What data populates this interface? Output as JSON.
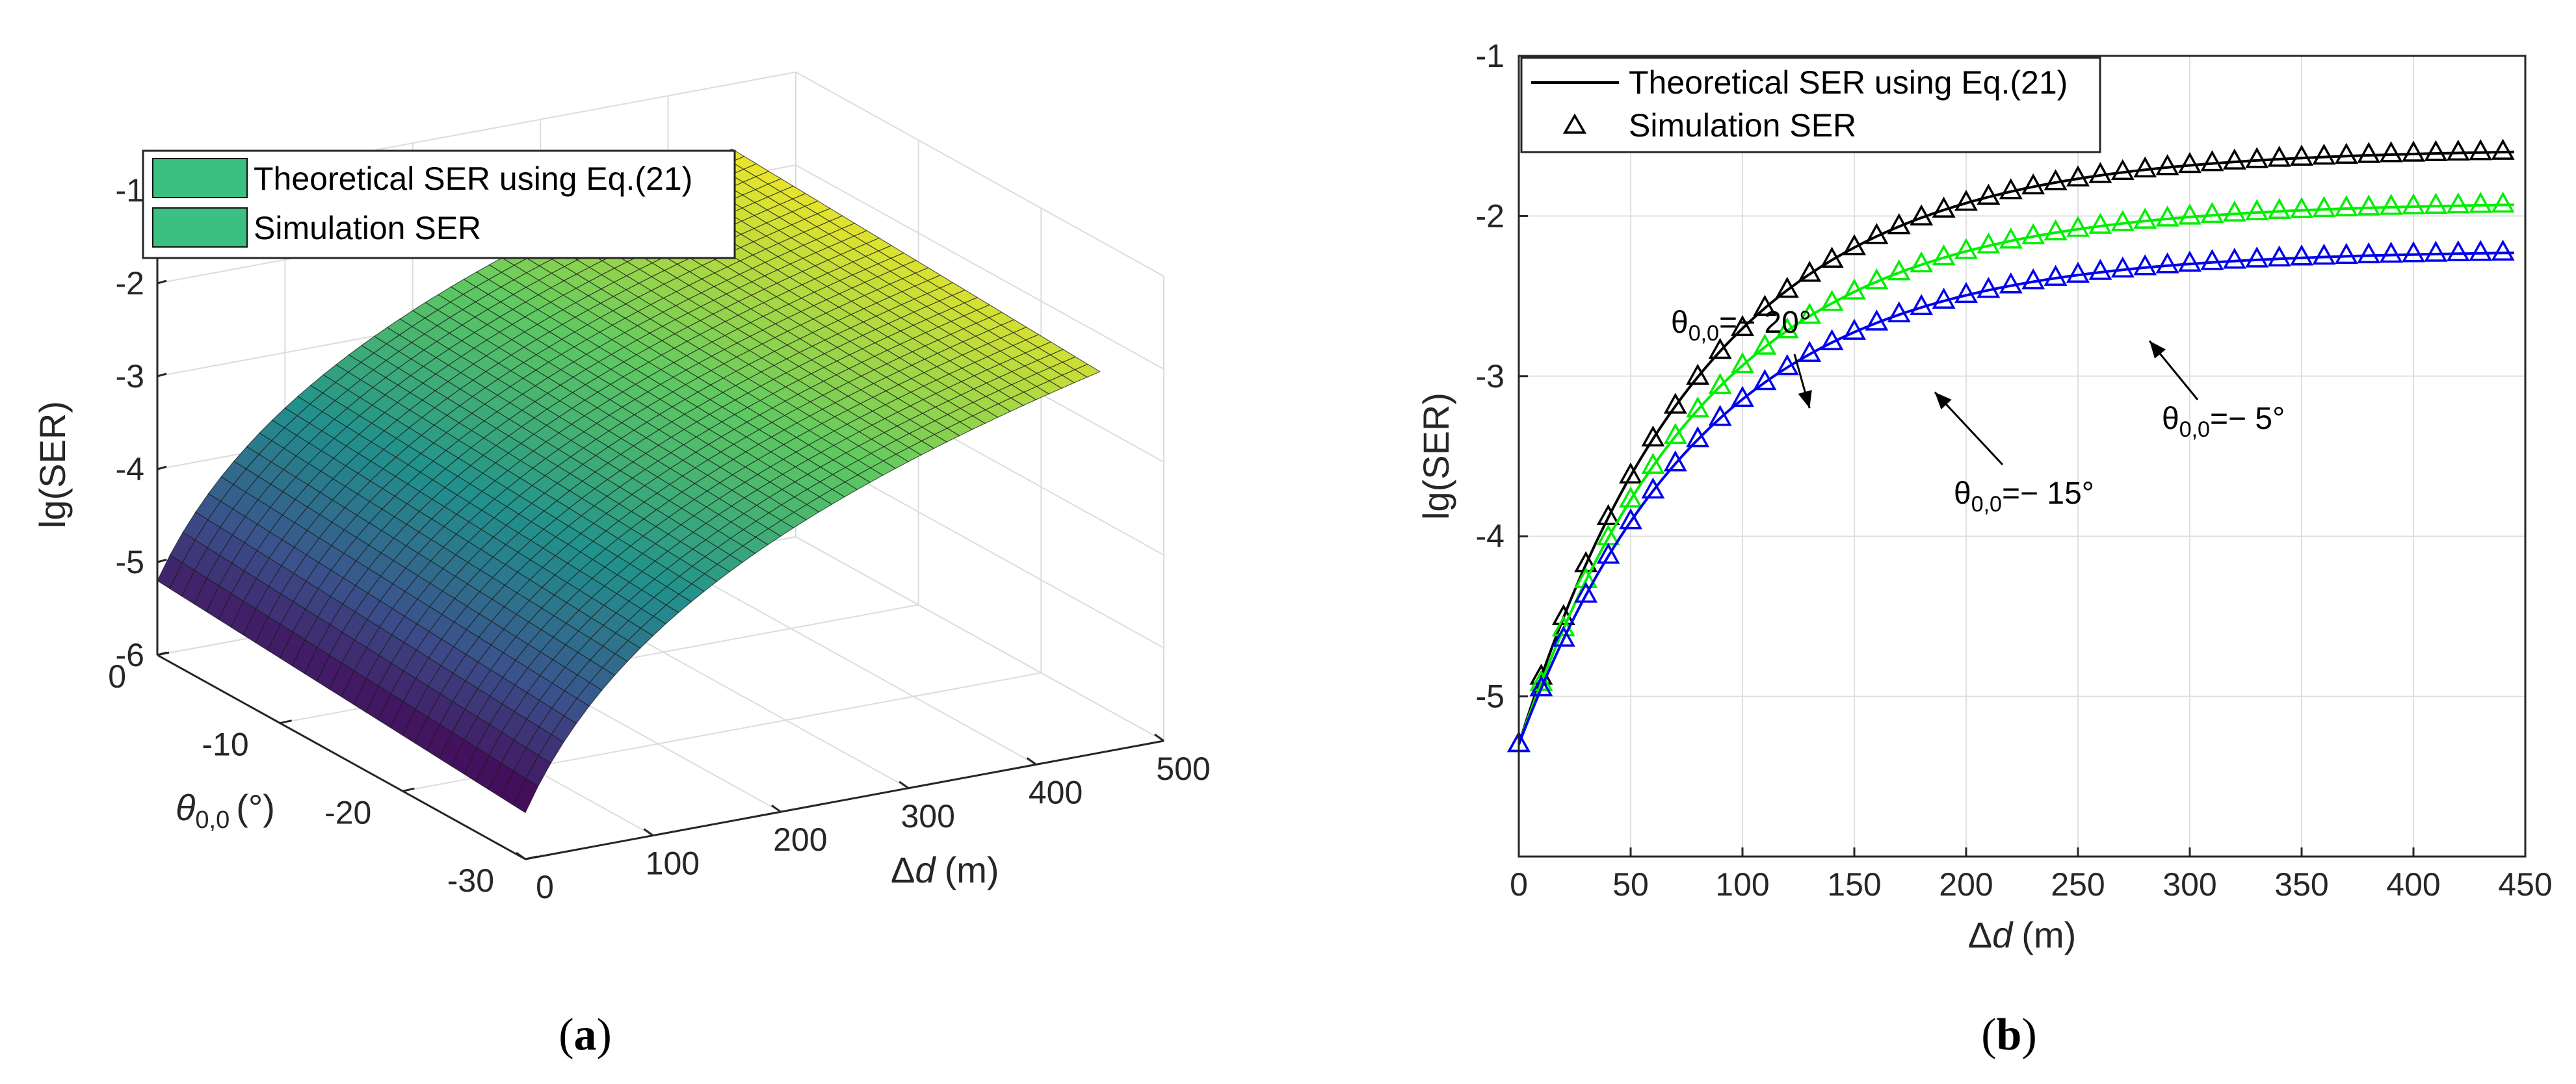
{
  "chart_data": [
    {
      "id": "a",
      "type": "surface3d",
      "caption_prefix": "(",
      "caption_letter": "a",
      "caption_suffix": ")",
      "zlabel": "lg(SER)",
      "ylabel_symbol": "θ",
      "ylabel_sub": "0,0",
      "ylabel_unit": "(°)",
      "xlabel_symbol": "Δ",
      "xlabel_var": "d",
      "xlabel_unit": "(m)",
      "x_ticks": [
        "0",
        "100",
        "200",
        "300",
        "400",
        "500"
      ],
      "y_ticks": [
        "0",
        "-10",
        "-20",
        "-30"
      ],
      "z_ticks": [
        "-1",
        "-2",
        "-3",
        "-4",
        "-5",
        "-6"
      ],
      "xlim": [
        0,
        500
      ],
      "ylim": [
        -30,
        0
      ],
      "zlim": [
        -6,
        -1
      ],
      "surface_x_range": [
        0,
        450
      ],
      "surface_y_range": [
        -30,
        0
      ],
      "surface_corner_z": {
        "x0_y0": -5.2,
        "x0_y-30": -5.5,
        "x450_y0": -1.7,
        "x450_y-30": -1.9
      },
      "legend": [
        "Theoretical SER using Eq.(21)",
        "Simulation SER"
      ],
      "legend_color": "#3cbf83"
    },
    {
      "id": "b",
      "type": "line",
      "caption_prefix": "(",
      "caption_letter": "b",
      "caption_suffix": ")",
      "ylabel": "lg(SER)",
      "xlabel_symbol": "Δ",
      "xlabel_var": "d",
      "xlabel_unit": "(m)",
      "xlim": [
        0,
        450
      ],
      "ylim": [
        -6,
        -1
      ],
      "x_ticks": [
        "0",
        "50",
        "100",
        "150",
        "200",
        "250",
        "300",
        "350",
        "400",
        "450"
      ],
      "y_ticks": [
        "-1",
        "-2",
        "-3",
        "-4",
        "-5"
      ],
      "grid": true,
      "legend": [
        "Theoretical SER using Eq.(21)",
        "Simulation SER"
      ],
      "legend_position": "top-left",
      "series": [
        {
          "name": "θ0,0 = -20°",
          "color": "#000000",
          "start": -5.3,
          "end": -1.6
        },
        {
          "name": "θ0,0 = -15°",
          "color": "#00ee00",
          "start": -5.3,
          "end": -1.93
        },
        {
          "name": "θ0,0 = -5°",
          "color": "#0000ee",
          "start": -5.3,
          "end": -2.23
        }
      ],
      "x_step": 10,
      "annotations": [
        {
          "symbol": "θ",
          "sub": "0,0",
          "text": "=− 20°",
          "x": 130,
          "y": -3.2
        },
        {
          "symbol": "θ",
          "sub": "0,0",
          "text": "=− 15°",
          "x": 186,
          "y": -3.1
        },
        {
          "symbol": "θ",
          "sub": "0,0",
          "text": "=− 5°",
          "x": 282,
          "y": -2.78
        }
      ]
    }
  ]
}
